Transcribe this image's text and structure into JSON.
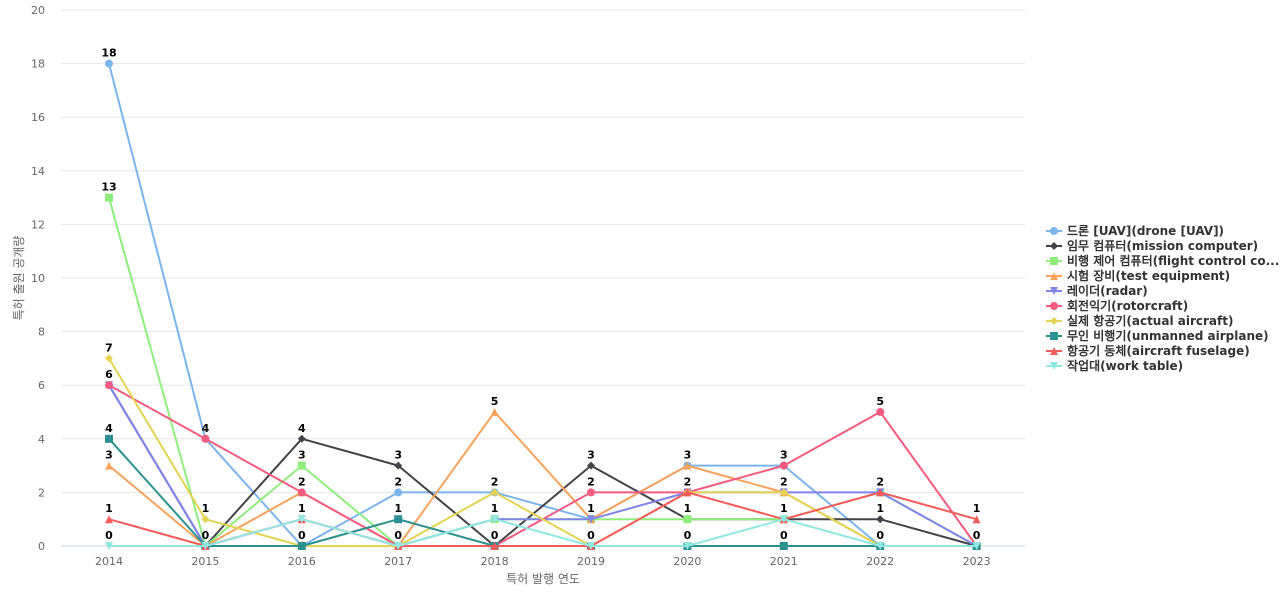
{
  "chart_data": {
    "type": "line",
    "xlabel": "특허 발행 연도",
    "ylabel": "특허 출원 공개량",
    "x": [
      "2014",
      "2015",
      "2016",
      "2017",
      "2018",
      "2019",
      "2020",
      "2021",
      "2022",
      "2023"
    ],
    "ylim": [
      0,
      20
    ],
    "yticks": [
      0,
      2,
      4,
      6,
      8,
      10,
      12,
      14,
      16,
      18,
      20
    ],
    "grid": true,
    "legend_position": "right",
    "series": [
      {
        "name": "드론 [UAV](drone [UAV])",
        "values": [
          18,
          4,
          0,
          2,
          2,
          1,
          3,
          3,
          0,
          0
        ],
        "color": "#7cb5ec",
        "marker": "circle"
      },
      {
        "name": "임무 컴퓨터(mission computer)",
        "values": [
          6,
          0,
          4,
          3,
          0,
          3,
          1,
          1,
          1,
          0
        ],
        "color": "#434348",
        "marker": "diamond"
      },
      {
        "name": "비행 제어 컴퓨터(flight control co...",
        "values": [
          13,
          0,
          3,
          0,
          1,
          1,
          1,
          1,
          2,
          0
        ],
        "color": "#90ed7d",
        "marker": "square"
      },
      {
        "name": "시험 장비(test equipment)",
        "values": [
          3,
          0,
          2,
          0,
          5,
          1,
          3,
          2,
          0,
          0
        ],
        "color": "#f7a35c",
        "marker": "triangle"
      },
      {
        "name": "레이더(radar)",
        "values": [
          6,
          0,
          1,
          0,
          1,
          1,
          2,
          2,
          2,
          0
        ],
        "color": "#8085e9",
        "marker": "triangle-down"
      },
      {
        "name": "회전익기(rotorcraft)",
        "values": [
          6,
          4,
          2,
          0,
          0,
          2,
          2,
          3,
          5,
          0
        ],
        "color": "#f15c80",
        "marker": "circle"
      },
      {
        "name": "실제 항공기(actual aircraft)",
        "values": [
          7,
          1,
          0,
          0,
          2,
          0,
          2,
          2,
          0,
          0
        ],
        "color": "#e4d354",
        "marker": "diamond"
      },
      {
        "name": "무인 비행기(unmanned airplane)",
        "values": [
          4,
          0,
          0,
          1,
          0,
          0,
          0,
          0,
          0,
          0
        ],
        "color": "#2b908f",
        "marker": "square"
      },
      {
        "name": "항공기 동체(aircraft fuselage)",
        "values": [
          1,
          0,
          1,
          0,
          0,
          0,
          2,
          1,
          2,
          1
        ],
        "color": "#f45b5b",
        "marker": "triangle"
      },
      {
        "name": "작업대(work table)",
        "values": [
          0,
          0,
          1,
          0,
          1,
          0,
          0,
          1,
          0,
          0
        ],
        "color": "#91e8e1",
        "marker": "triangle-down"
      }
    ],
    "data_labels": [
      {
        "x": "2014",
        "value": 18
      },
      {
        "x": "2014",
        "value": 13
      },
      {
        "x": "2014",
        "value": 7
      },
      {
        "x": "2014",
        "value": 6
      },
      {
        "x": "2014",
        "value": 4
      },
      {
        "x": "2014",
        "value": 3
      },
      {
        "x": "2014",
        "value": 1
      },
      {
        "x": "2014",
        "value": 0
      },
      {
        "x": "2015",
        "value": 4
      },
      {
        "x": "2015",
        "value": 1
      },
      {
        "x": "2015",
        "value": 0
      },
      {
        "x": "2016",
        "value": 4
      },
      {
        "x": "2016",
        "value": 3
      },
      {
        "x": "2016",
        "value": 2
      },
      {
        "x": "2016",
        "value": 1
      },
      {
        "x": "2016",
        "value": 0
      },
      {
        "x": "2017",
        "value": 3
      },
      {
        "x": "2017",
        "value": 2
      },
      {
        "x": "2017",
        "value": 1
      },
      {
        "x": "2017",
        "value": 0
      },
      {
        "x": "2018",
        "value": 5
      },
      {
        "x": "2018",
        "value": 2
      },
      {
        "x": "2018",
        "value": 1
      },
      {
        "x": "2018",
        "value": 0
      },
      {
        "x": "2019",
        "value": 3
      },
      {
        "x": "2019",
        "value": 2
      },
      {
        "x": "2019",
        "value": 1
      },
      {
        "x": "2019",
        "value": 0
      },
      {
        "x": "2020",
        "value": 3
      },
      {
        "x": "2020",
        "value": 2
      },
      {
        "x": "2020",
        "value": 1
      },
      {
        "x": "2020",
        "value": 0
      },
      {
        "x": "2021",
        "value": 3
      },
      {
        "x": "2021",
        "value": 2
      },
      {
        "x": "2021",
        "value": 1
      },
      {
        "x": "2021",
        "value": 0
      },
      {
        "x": "2022",
        "value": 5
      },
      {
        "x": "2022",
        "value": 2
      },
      {
        "x": "2022",
        "value": 1
      },
      {
        "x": "2022",
        "value": 0
      },
      {
        "x": "2023",
        "value": 1
      },
      {
        "x": "2023",
        "value": 0
      }
    ]
  }
}
